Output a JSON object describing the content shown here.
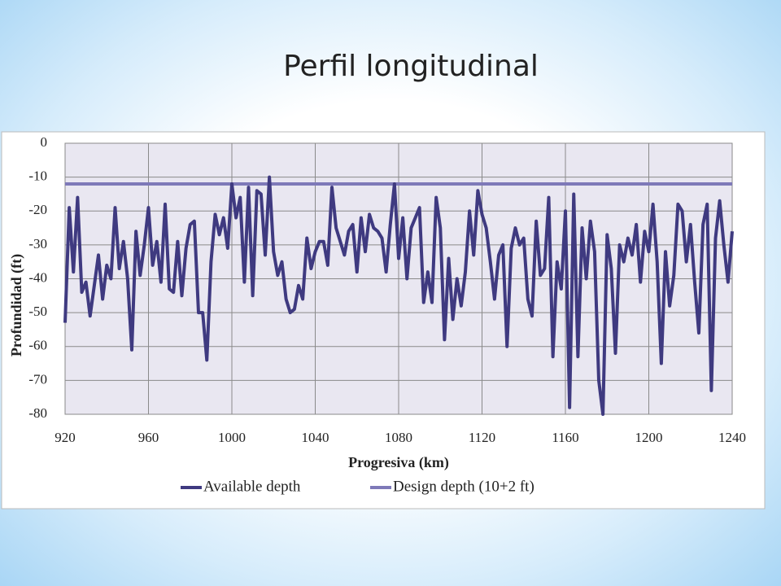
{
  "title": "Perfil longitudinal",
  "chart_data": {
    "type": "line",
    "x_label": "Progresiva (km)",
    "y_label": "Profundidad (ft)",
    "xlim": [
      920,
      1240
    ],
    "ylim": [
      -80,
      0
    ],
    "xticks": [
      920,
      960,
      1000,
      1040,
      1080,
      1120,
      1160,
      1200,
      1240
    ],
    "yticks": [
      0,
      -10,
      -20,
      -30,
      -40,
      -50,
      -60,
      -70,
      -80
    ],
    "grid": true,
    "legend": "bottom",
    "series": [
      {
        "name": "Available depth",
        "color": "#3f3a80",
        "x": [
          920,
          922,
          924,
          926,
          928,
          930,
          932,
          934,
          936,
          938,
          940,
          942,
          944,
          946,
          948,
          950,
          952,
          954,
          956,
          958,
          960,
          962,
          964,
          966,
          968,
          970,
          972,
          974,
          976,
          978,
          980,
          982,
          984,
          986,
          988,
          990,
          992,
          994,
          996,
          998,
          1000,
          1002,
          1004,
          1006,
          1008,
          1010,
          1012,
          1014,
          1016,
          1018,
          1020,
          1022,
          1024,
          1026,
          1028,
          1030,
          1032,
          1034,
          1036,
          1038,
          1040,
          1042,
          1044,
          1046,
          1048,
          1050,
          1052,
          1054,
          1056,
          1058,
          1060,
          1062,
          1064,
          1066,
          1068,
          1070,
          1072,
          1074,
          1076,
          1078,
          1080,
          1082,
          1084,
          1086,
          1088,
          1090,
          1092,
          1094,
          1096,
          1098,
          1100,
          1102,
          1104,
          1106,
          1108,
          1110,
          1112,
          1114,
          1116,
          1118,
          1120,
          1122,
          1124,
          1126,
          1128,
          1130,
          1132,
          1134,
          1136,
          1138,
          1140,
          1142,
          1144,
          1146,
          1148,
          1150,
          1152,
          1154,
          1156,
          1158,
          1160,
          1162,
          1164,
          1166,
          1168,
          1170,
          1172,
          1174,
          1176,
          1178,
          1180,
          1182,
          1184,
          1186,
          1188,
          1190,
          1192,
          1194,
          1196,
          1198,
          1200,
          1202,
          1204,
          1206,
          1208,
          1210,
          1212,
          1214,
          1216,
          1218,
          1220,
          1222,
          1224,
          1226,
          1228,
          1230,
          1232,
          1234,
          1236,
          1238,
          1240
        ],
        "values": [
          -53,
          -19,
          -38,
          -16,
          -44,
          -41,
          -51,
          -42,
          -33,
          -46,
          -36,
          -40,
          -19,
          -37,
          -29,
          -40,
          -61,
          -26,
          -39,
          -30,
          -19,
          -36,
          -29,
          -41,
          -18,
          -43,
          -44,
          -29,
          -45,
          -31,
          -24,
          -23,
          -50,
          -50,
          -64,
          -35,
          -21,
          -27,
          -22,
          -31,
          -12,
          -22,
          -16,
          -41,
          -13,
          -45,
          -14,
          -15,
          -33,
          -10,
          -32,
          -39,
          -35,
          -46,
          -50,
          -49,
          -42,
          -46,
          -28,
          -37,
          -32,
          -29,
          -29,
          -36,
          -13,
          -25,
          -29,
          -33,
          -26,
          -24,
          -38,
          -22,
          -32,
          -21,
          -25,
          -26,
          -28,
          -38,
          -24,
          -12,
          -34,
          -22,
          -40,
          -25,
          -22,
          -19,
          -47,
          -38,
          -47,
          -16,
          -25,
          -58,
          -34,
          -52,
          -40,
          -48,
          -38,
          -20,
          -33,
          -14,
          -21,
          -25,
          -35,
          -46,
          -33,
          -30,
          -60,
          -31,
          -25,
          -30,
          -28,
          -46,
          -51,
          -23,
          -39,
          -37,
          -16,
          -63,
          -35,
          -43,
          -20,
          -78,
          -15,
          -63,
          -25,
          -40,
          -23,
          -32,
          -70,
          -80,
          -27,
          -37,
          -62,
          -30,
          -35,
          -28,
          -33,
          -24,
          -41,
          -26,
          -32,
          -18,
          -35,
          -65,
          -32,
          -48,
          -39,
          -18,
          -20,
          -35,
          -24,
          -41,
          -56,
          -24,
          -18,
          -73,
          -28,
          -17,
          -30,
          -41,
          -26
        ]
      },
      {
        "name": "Design depth (10+2 ft)",
        "color": "#7e79b8",
        "x": [
          920,
          1240
        ],
        "values": [
          -12,
          -12
        ]
      }
    ]
  }
}
